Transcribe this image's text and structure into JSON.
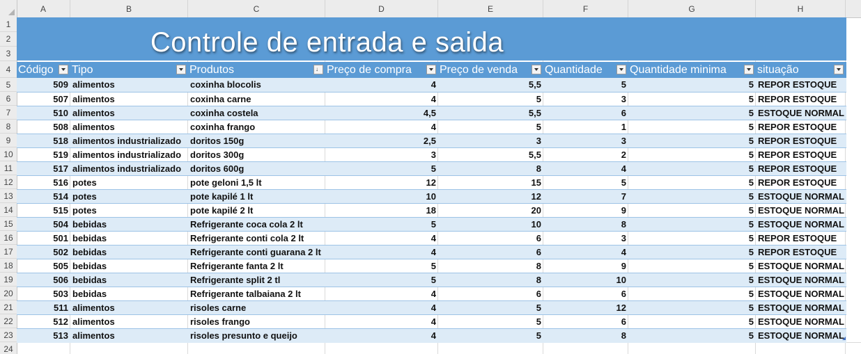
{
  "sheet": {
    "columns": [
      "A",
      "B",
      "C",
      "D",
      "E",
      "F",
      "G",
      "H"
    ],
    "rows": [
      "1",
      "2",
      "3",
      "4",
      "5",
      "6",
      "7",
      "8",
      "9",
      "10",
      "11",
      "12",
      "13",
      "14",
      "15",
      "16",
      "17",
      "18",
      "19",
      "20",
      "21",
      "22",
      "23",
      "24"
    ],
    "title": "Controle de entrada e saida",
    "headers": [
      "Código",
      "Tipo",
      "Produtos",
      "Preço de compra",
      "Preço de venda",
      "Quantidade",
      "Quantidade minima",
      "situação"
    ],
    "data": [
      [
        "509",
        "alimentos",
        "coxinha blocolis",
        "4",
        "5,5",
        "5",
        "5",
        "REPOR ESTOQUE"
      ],
      [
        "507",
        "alimentos",
        "coxinha carne",
        "4",
        "5",
        "3",
        "5",
        "REPOR ESTOQUE"
      ],
      [
        "510",
        "alimentos",
        "coxinha costela",
        "4,5",
        "5,5",
        "6",
        "5",
        "ESTOQUE NORMAL"
      ],
      [
        "508",
        "alimentos",
        "coxinha frango",
        "4",
        "5",
        "1",
        "5",
        "REPOR ESTOQUE"
      ],
      [
        "518",
        "alimentos industrializado",
        "doritos  150g",
        "2,5",
        "3",
        "3",
        "5",
        "REPOR ESTOQUE"
      ],
      [
        "519",
        "alimentos industrializado",
        "doritos 300g",
        "3",
        "5,5",
        "2",
        "5",
        "REPOR ESTOQUE"
      ],
      [
        "517",
        "alimentos industrializado",
        "doritos 600g",
        "5",
        "8",
        "4",
        "5",
        "REPOR ESTOQUE"
      ],
      [
        "516",
        "potes",
        "pote geloni 1,5 lt",
        "12",
        "15",
        "5",
        "5",
        "REPOR ESTOQUE"
      ],
      [
        "514",
        "potes",
        "pote kapilé 1 lt",
        "10",
        "12",
        "7",
        "5",
        "ESTOQUE NORMAL"
      ],
      [
        "515",
        "potes",
        "pote kapilé 2 lt",
        "18",
        "20",
        "9",
        "5",
        "ESTOQUE NORMAL"
      ],
      [
        "504",
        "bebidas",
        "Refrigerante coca cola 2 lt",
        "5",
        "10",
        "8",
        "5",
        "ESTOQUE NORMAL"
      ],
      [
        "501",
        "bebidas",
        "Refrigerante conti cola 2 lt",
        "4",
        "6",
        "3",
        "5",
        "REPOR ESTOQUE"
      ],
      [
        "502",
        "bebidas",
        "Refrigerante conti guarana 2 lt",
        "4",
        "6",
        "4",
        "5",
        "REPOR ESTOQUE"
      ],
      [
        "505",
        "bebidas",
        "Refrigerante fanta 2 lt",
        "5",
        "8",
        "9",
        "5",
        "ESTOQUE NORMAL"
      ],
      [
        "506",
        "bebidas",
        "Refrigerante split 2 tl",
        "5",
        "8",
        "10",
        "5",
        "ESTOQUE NORMAL"
      ],
      [
        "503",
        "bebidas",
        "Refrigerante talbaiana 2 lt",
        "4",
        "6",
        "6",
        "5",
        "ESTOQUE NORMAL"
      ],
      [
        "511",
        "alimentos",
        "risoles carne",
        "4",
        "5",
        "12",
        "5",
        "ESTOQUE NORMAL"
      ],
      [
        "512",
        "alimentos",
        "risoles frango",
        "4",
        "5",
        "6",
        "5",
        "ESTOQUE NORMAL"
      ],
      [
        "513",
        "alimentos",
        "risoles presunto e queijo",
        "4",
        "5",
        "8",
        "5",
        "ESTOQUE NORMAL"
      ]
    ],
    "colors": {
      "header_blue": "#5b9bd5",
      "band_blue": "#ddebf7",
      "line_blue": "#9dc3e6"
    },
    "icons": {
      "filter": "dropdown-arrow-icon",
      "sorted_filter": "sort-ascending-icon"
    }
  }
}
